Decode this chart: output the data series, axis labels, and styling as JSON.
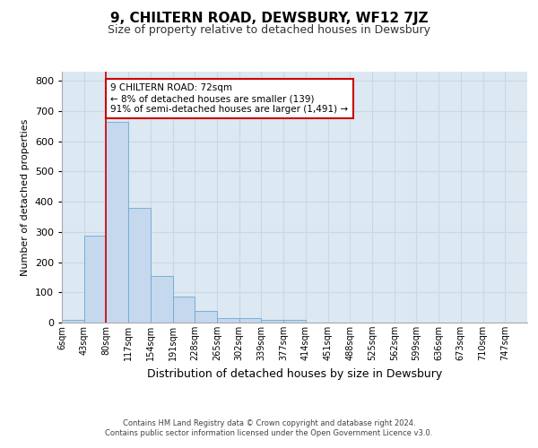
{
  "title": "9, CHILTERN ROAD, DEWSBURY, WF12 7JZ",
  "subtitle": "Size of property relative to detached houses in Dewsbury",
  "xlabel": "Distribution of detached houses by size in Dewsbury",
  "ylabel": "Number of detached properties",
  "footer_line1": "Contains HM Land Registry data © Crown copyright and database right 2024.",
  "footer_line2": "Contains public sector information licensed under the Open Government Licence v3.0.",
  "bin_labels": [
    "6sqm",
    "43sqm",
    "80sqm",
    "117sqm",
    "154sqm",
    "191sqm",
    "228sqm",
    "265sqm",
    "302sqm",
    "339sqm",
    "377sqm",
    "414sqm",
    "451sqm",
    "488sqm",
    "525sqm",
    "562sqm",
    "599sqm",
    "636sqm",
    "673sqm",
    "710sqm",
    "747sqm"
  ],
  "bar_values": [
    8,
    288,
    665,
    378,
    155,
    85,
    40,
    15,
    14,
    10,
    8,
    0,
    0,
    0,
    0,
    0,
    0,
    0,
    0,
    0,
    0
  ],
  "bar_color": "#c5d8ee",
  "bar_edge_color": "#6baad0",
  "property_line_x": 2,
  "property_line_color": "#cc0000",
  "annotation_text": "9 CHILTERN ROAD: 72sqm\n← 8% of detached houses are smaller (139)\n91% of semi-detached houses are larger (1,491) →",
  "annotation_box_color": "#ffffff",
  "annotation_box_edge_color": "#cc0000",
  "ylim": [
    0,
    830
  ],
  "yticks": [
    0,
    100,
    200,
    300,
    400,
    500,
    600,
    700,
    800
  ],
  "grid_color": "#c8d8e8",
  "bg_color": "#dce8f2",
  "title_fontsize": 11,
  "subtitle_fontsize": 9
}
